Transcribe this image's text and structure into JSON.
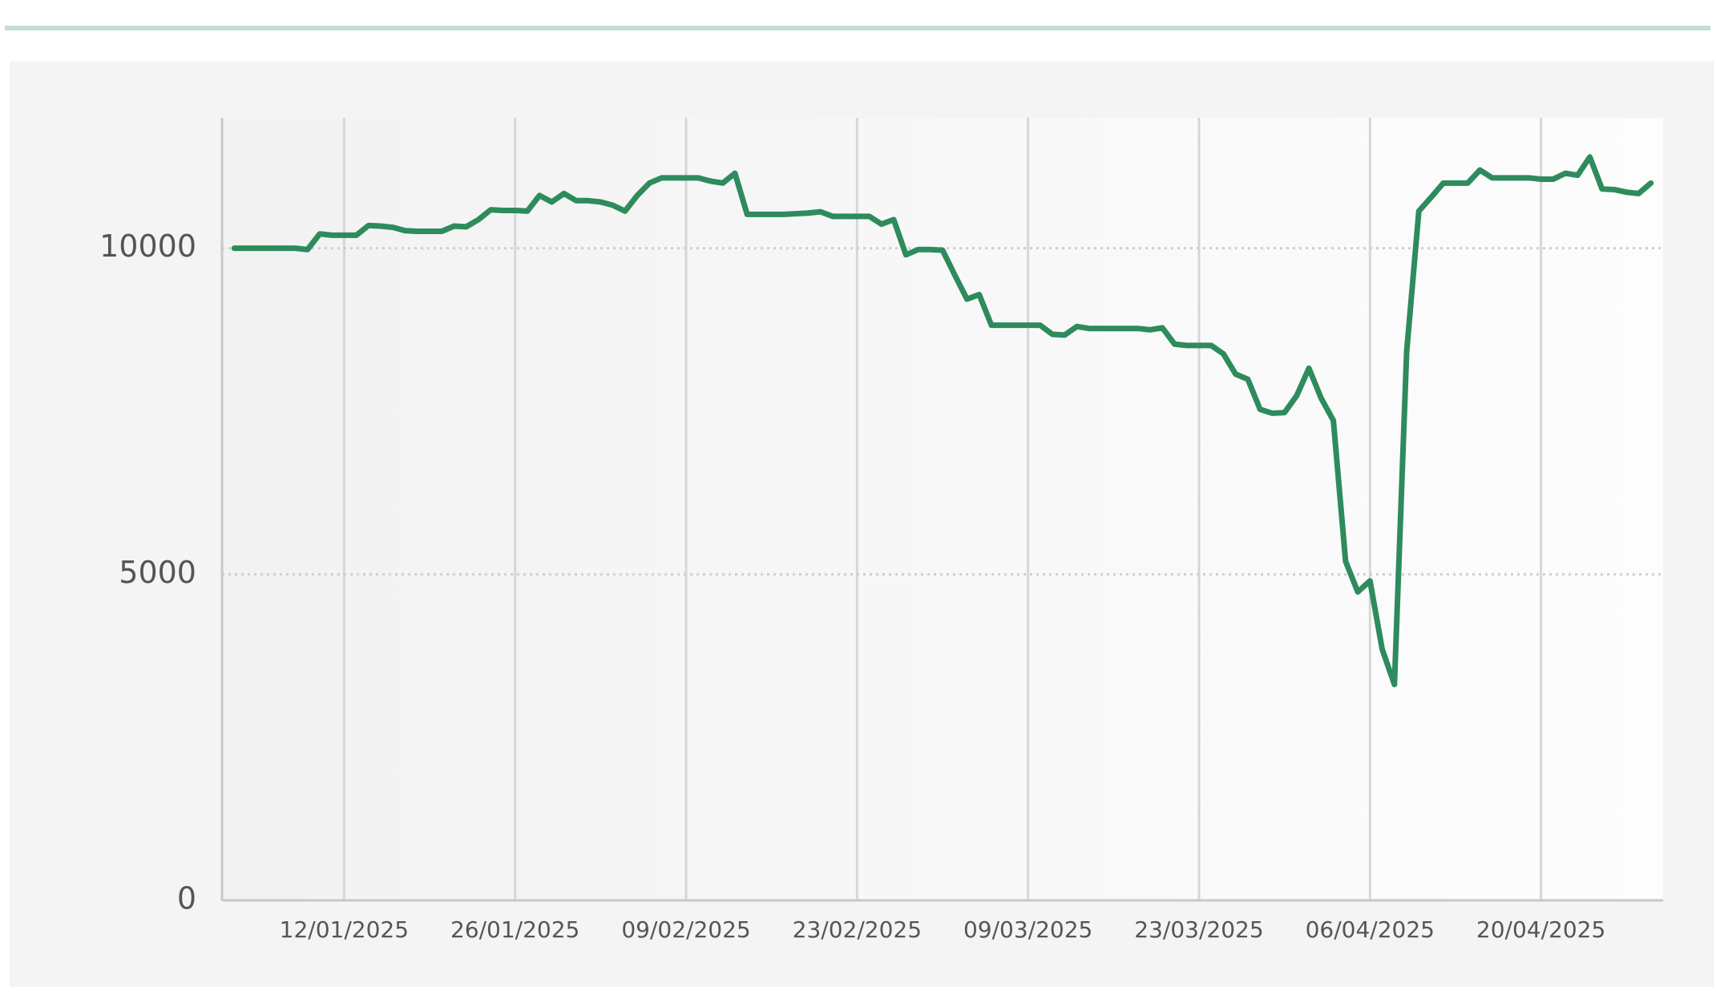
{
  "chart_data": {
    "type": "line",
    "x": [
      "03/01/2025",
      "04/01/2025",
      "05/01/2025",
      "06/01/2025",
      "07/01/2025",
      "08/01/2025",
      "09/01/2025",
      "10/01/2025",
      "11/01/2025",
      "12/01/2025",
      "13/01/2025",
      "14/01/2025",
      "15/01/2025",
      "16/01/2025",
      "17/01/2025",
      "18/01/2025",
      "19/01/2025",
      "20/01/2025",
      "21/01/2025",
      "22/01/2025",
      "23/01/2025",
      "24/01/2025",
      "25/01/2025",
      "26/01/2025",
      "27/01/2025",
      "28/01/2025",
      "29/01/2025",
      "30/01/2025",
      "31/01/2025",
      "01/02/2025",
      "02/02/2025",
      "03/02/2025",
      "04/02/2025",
      "05/02/2025",
      "06/02/2025",
      "07/02/2025",
      "08/02/2025",
      "09/02/2025",
      "10/02/2025",
      "11/02/2025",
      "12/02/2025",
      "13/02/2025",
      "14/02/2025",
      "15/02/2025",
      "16/02/2025",
      "17/02/2025",
      "18/02/2025",
      "19/02/2025",
      "20/02/2025",
      "21/02/2025",
      "22/02/2025",
      "23/02/2025",
      "24/02/2025",
      "25/02/2025",
      "26/02/2025",
      "27/02/2025",
      "28/02/2025",
      "01/03/2025",
      "02/03/2025",
      "03/03/2025",
      "04/03/2025",
      "05/03/2025",
      "06/03/2025",
      "07/03/2025",
      "08/03/2025",
      "09/03/2025",
      "10/03/2025",
      "11/03/2025",
      "12/03/2025",
      "13/03/2025",
      "14/03/2025",
      "15/03/2025",
      "16/03/2025",
      "17/03/2025",
      "18/03/2025",
      "19/03/2025",
      "20/03/2025",
      "21/03/2025",
      "22/03/2025",
      "23/03/2025",
      "24/03/2025",
      "25/03/2025",
      "26/03/2025",
      "27/03/2025",
      "28/03/2025",
      "29/03/2025",
      "30/03/2025",
      "31/03/2025",
      "01/04/2025",
      "02/04/2025",
      "03/04/2025",
      "04/04/2025",
      "05/04/2025",
      "06/04/2025",
      "07/04/2025",
      "08/04/2025",
      "09/04/2025",
      "10/04/2025",
      "11/04/2025",
      "12/04/2025",
      "13/04/2025",
      "14/04/2025",
      "15/04/2025",
      "16/04/2025",
      "17/04/2025",
      "18/04/2025",
      "19/04/2025",
      "20/04/2025",
      "21/04/2025",
      "22/04/2025",
      "23/04/2025",
      "24/04/2025",
      "25/04/2025",
      "26/04/2025",
      "27/04/2025",
      "28/04/2025",
      "29/04/2025"
    ],
    "values": [
      10000,
      10000,
      10000,
      10000,
      10000,
      10000,
      9980,
      10220,
      10200,
      10200,
      10200,
      10350,
      10340,
      10320,
      10270,
      10260,
      10260,
      10260,
      10340,
      10330,
      10440,
      10590,
      10580,
      10580,
      10570,
      10810,
      10710,
      10840,
      10730,
      10730,
      10710,
      10660,
      10570,
      10810,
      11000,
      11080,
      11080,
      11080,
      11080,
      11030,
      11000,
      11150,
      10520,
      10520,
      10520,
      10520,
      10530,
      10540,
      10560,
      10490,
      10490,
      10490,
      10490,
      10370,
      10440,
      9900,
      9980,
      9980,
      9970,
      9590,
      9220,
      9290,
      8820,
      8820,
      8820,
      8820,
      8820,
      8680,
      8670,
      8800,
      8770,
      8770,
      8770,
      8770,
      8770,
      8750,
      8780,
      8530,
      8510,
      8510,
      8510,
      8380,
      8070,
      7990,
      7530,
      7470,
      7480,
      7740,
      8160,
      7700,
      7360,
      5200,
      4730,
      4900,
      3850,
      3310,
      8410,
      10570,
      10780,
      11000,
      11000,
      11000,
      11200,
      11080,
      11080,
      11080,
      11080,
      11060,
      11060,
      11150,
      11120,
      11400,
      10910,
      10900,
      10860,
      10840,
      11000
    ],
    "color": "#2e8b5c",
    "xlim": [
      "02/01/2025",
      "30/04/2025"
    ],
    "xticks": [
      "12/01/2025",
      "26/01/2025",
      "09/02/2025",
      "23/02/2025",
      "09/03/2025",
      "23/03/2025",
      "06/04/2025",
      "20/04/2025"
    ],
    "ylim": [
      0,
      12000
    ],
    "yticks": [
      0,
      5000,
      10000
    ],
    "grid": true
  }
}
